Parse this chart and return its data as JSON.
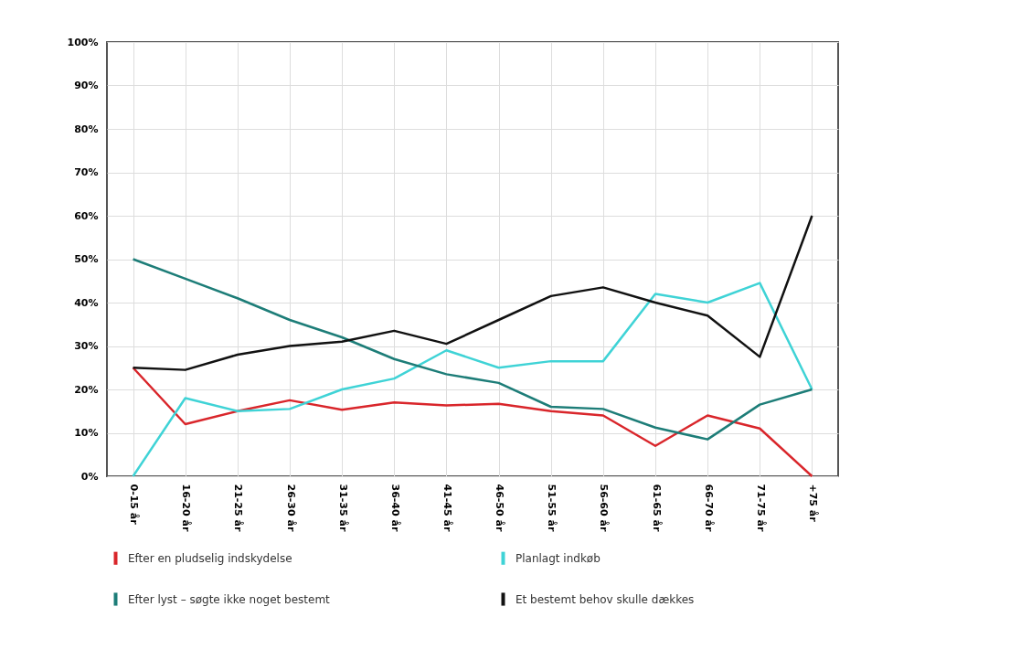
{
  "chart_data": {
    "type": "line",
    "categories": [
      "0-15 år",
      "16-20 år",
      "21-25 år",
      "26-30 år",
      "31-35 år",
      "36-40 år",
      "41-45 år",
      "46-50 år",
      "51-55 år",
      "56-60 år",
      "61-65 år",
      "66-70 år",
      "71-75 år",
      "+75 år"
    ],
    "series": [
      {
        "name": "Efter en pludselig indskydelse",
        "color": "#d9262b",
        "values": [
          25,
          12,
          15,
          17.5,
          15.3,
          17,
          16.3,
          16.7,
          15,
          14,
          7,
          14,
          11,
          0
        ]
      },
      {
        "name": "Planlagt indkøb",
        "color": "#3fd3d6",
        "values": [
          0,
          18,
          15,
          15.5,
          20,
          22.5,
          29,
          25,
          26.5,
          26.5,
          42,
          40,
          44.5,
          20
        ]
      },
      {
        "name": "Efter lyst – søgte ikke noget bestemt",
        "color": "#1d7d78",
        "values": [
          50,
          45.5,
          41,
          36,
          32,
          27,
          23.5,
          21.5,
          16,
          15.5,
          11.2,
          8.5,
          16.5,
          20
        ]
      },
      {
        "name": "Et bestemt behov skulle dækkes",
        "color": "#111111",
        "values": [
          25,
          24.5,
          28,
          30,
          31,
          33.5,
          30.5,
          36,
          41.5,
          43.5,
          40,
          37,
          27.5,
          60
        ]
      }
    ],
    "ylim": [
      0,
      100
    ],
    "yticks": [
      {
        "value": 0,
        "label": "0%"
      },
      {
        "value": 10,
        "label": "10%"
      },
      {
        "value": 20,
        "label": "20%"
      },
      {
        "value": 30,
        "label": "30%"
      },
      {
        "value": 40,
        "label": "40%"
      },
      {
        "value": 50,
        "label": "50%"
      },
      {
        "value": 60,
        "label": "60%"
      },
      {
        "value": 70,
        "label": "70%"
      },
      {
        "value": 80,
        "label": "80%"
      },
      {
        "value": 90,
        "label": "90%"
      },
      {
        "value": 100,
        "label": "100%"
      }
    ],
    "grid": true,
    "legend": "bottom",
    "marker": "none",
    "line_style": "solid"
  }
}
